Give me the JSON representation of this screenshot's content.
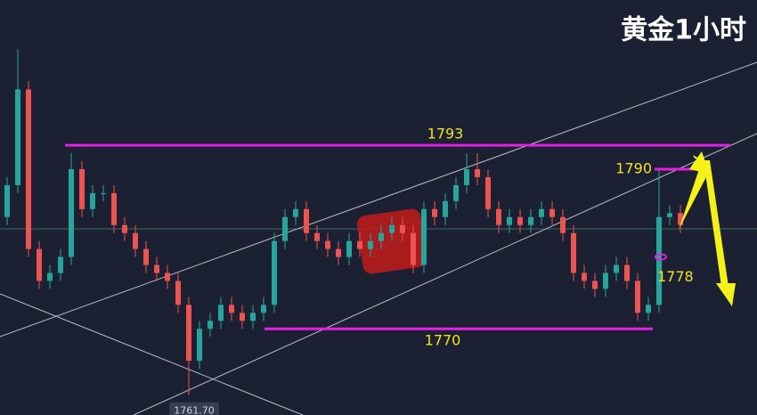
{
  "chart_data": {
    "type": "candlestick",
    "title": "黄金1小时",
    "up_color": "#26a69a",
    "down_color": "#ef5350",
    "level_color": "#e61ee6",
    "label_color": "#f2e21e",
    "ylim": [
      1759.2,
      1811.2
    ],
    "open": [
      1784,
      1788,
      1800,
      1780,
      1776,
      1777,
      1779,
      1790,
      1785,
      1787,
      1787,
      1783,
      1782,
      1780,
      1778,
      1777,
      1776,
      1773,
      1766,
      1770,
      1771,
      1773,
      1772,
      1771,
      1772,
      1773,
      1781,
      1784,
      1785,
      1782,
      1781,
      1780,
      1779,
      1781,
      1780,
      1781,
      1782,
      1783,
      1782,
      1778,
      1785,
      1784,
      1786,
      1788,
      1790,
      1789,
      1785,
      1783,
      1784,
      1783,
      1784,
      1785,
      1784,
      1782,
      1777,
      1776,
      1775,
      1777,
      1778,
      1776,
      1772,
      1773,
      1784,
      1784.5
    ],
    "high": [
      1789,
      1805,
      1801,
      1781,
      1778,
      1780,
      1792,
      1791,
      1788,
      1788,
      1788,
      1784,
      1783,
      1781,
      1779,
      1778,
      1777,
      1774,
      1771,
      1772,
      1774,
      1774,
      1773,
      1773,
      1774,
      1782,
      1785,
      1786,
      1786,
      1783,
      1782,
      1781,
      1782,
      1782,
      1782,
      1783,
      1784,
      1784,
      1783,
      1786,
      1786,
      1787,
      1789,
      1792,
      1792,
      1790,
      1786,
      1785,
      1785,
      1785,
      1786,
      1786,
      1785,
      1783,
      1778,
      1777,
      1778,
      1779,
      1779,
      1777,
      1774,
      1790,
      1785.5,
      1785.5
    ],
    "low": [
      1783,
      1787,
      1779,
      1775,
      1775,
      1776,
      1778,
      1784,
      1784,
      1786,
      1782,
      1781,
      1779,
      1777,
      1776,
      1775,
      1772,
      1761.7,
      1765,
      1769,
      1770,
      1771,
      1770,
      1770,
      1771,
      1772,
      1780,
      1783,
      1781,
      1780,
      1779,
      1778,
      1778,
      1779,
      1779,
      1780,
      1781,
      1781,
      1777,
      1777,
      1783,
      1783,
      1785,
      1787,
      1788,
      1784,
      1782,
      1782,
      1782,
      1782,
      1783,
      1783,
      1781,
      1776,
      1775,
      1774,
      1774,
      1776,
      1775,
      1771,
      1771,
      1772,
      1783,
      1782
    ],
    "close": [
      1788,
      1800,
      1780,
      1776,
      1777,
      1779,
      1790,
      1785,
      1787,
      1787,
      1783,
      1782,
      1780,
      1778,
      1777,
      1776,
      1773,
      1766,
      1770,
      1771,
      1773,
      1772,
      1771,
      1772,
      1773,
      1781,
      1784,
      1785,
      1782,
      1781,
      1780,
      1779,
      1781,
      1780,
      1781,
      1782,
      1783,
      1782,
      1778,
      1785,
      1784,
      1786,
      1788,
      1790,
      1789,
      1785,
      1783,
      1784,
      1783,
      1784,
      1785,
      1784,
      1782,
      1777,
      1776,
      1775,
      1777,
      1778,
      1776,
      1772,
      1773,
      1784,
      1784.5,
      1783
    ],
    "levels": [
      1793,
      1770,
      1790,
      1778
    ],
    "low_label": {
      "value": 1761.7,
      "label": "1761.70"
    }
  }
}
